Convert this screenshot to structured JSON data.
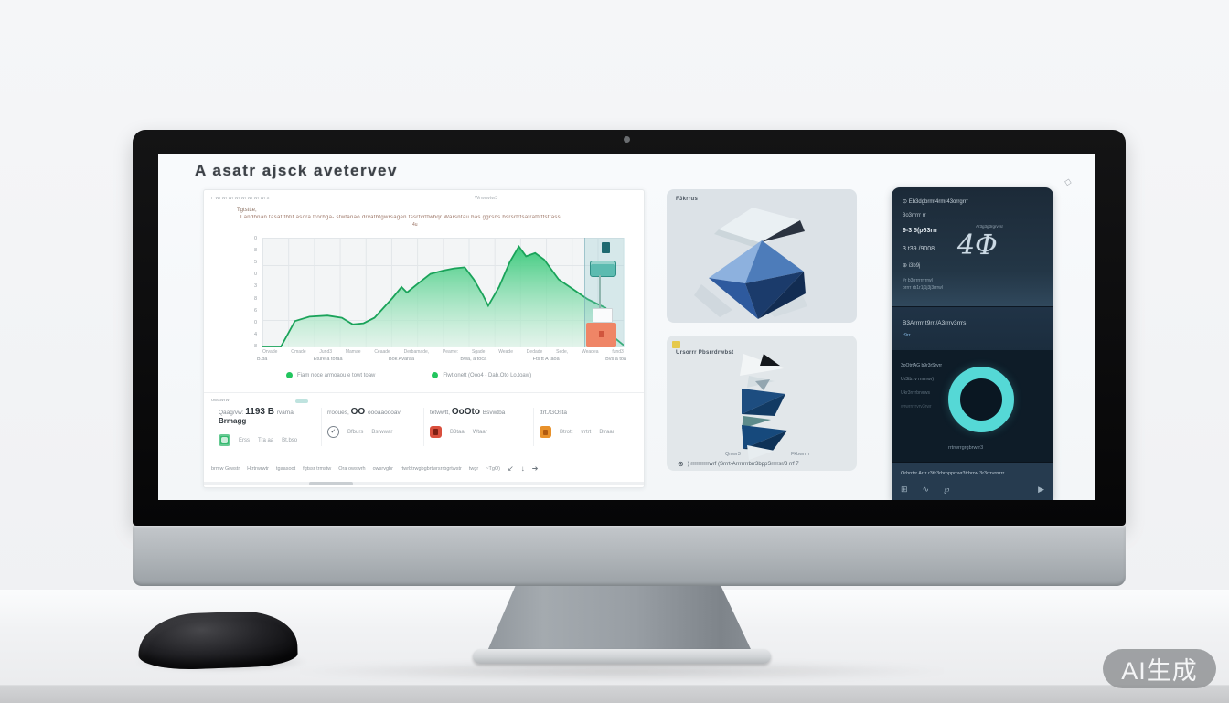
{
  "watermark": "AI生成",
  "screen": {
    "title": "A asatr ajsck avetervev",
    "corner_icon": "◇"
  },
  "chart_card": {
    "header_left": "r wrwrwrwrwrwrwrwrs",
    "header_right": "Wrwrwtw3",
    "annotation_lead": "Tgtsttte,",
    "annotation": "Landbnan tasat tbtif asora trorbga- stwtanao drvatbtgwrsagen tssrtvrtfwbqr  Warsntau bas ggrsns  bsrsrtrtsatrattrtfstfass",
    "annotation_sub": "4u",
    "legend": [
      "Fiam noce armoaou e towt toaw",
      "Flwt onett (Ooo4 - Dab.Oto Lo.toaw)"
    ],
    "stats_label": "owswrw",
    "stats": [
      {
        "header_prefix": "Qaag/vw:",
        "header_big": "1193 B",
        "header_suffix": "rvama",
        "header_sub": "Brmagg",
        "icon": "green-square",
        "values": [
          "Erss",
          "Tra aa",
          "Bt.bso"
        ]
      },
      {
        "header_prefix": "rrooues,",
        "header_big": "OO",
        "header_suffix": "oooaaoooav",
        "header_sub": "",
        "icon": "check-circle",
        "values": [
          "Bfburs",
          "Bsrwwar"
        ]
      },
      {
        "header_prefix": "tetwwtt,",
        "header_big": "OoOto",
        "header_suffix": "Bsvwtba",
        "header_sub": "",
        "icon": "red-square",
        "values": [
          "B3taa",
          "Wtaar"
        ]
      },
      {
        "header_prefix": "ttrt./GOsta",
        "header_big": "",
        "header_suffix": "",
        "header_sub": "",
        "icon": "orange-square",
        "values": [
          "Btrott",
          "trrtrt",
          "Btraar"
        ]
      }
    ],
    "footer_items": [
      "brmw Grwstr",
      "Htrtrwrwtr",
      "tgaasoot",
      "fgtssr trmstw",
      "Ora owswrh",
      "owsrvgbr",
      "rtwrbtrwgbgbrtwrsrrbgrtwstr",
      "twgr",
      "~TgO)"
    ],
    "footer_icons": [
      "↙",
      "↓",
      "➔"
    ]
  },
  "chart_data": {
    "type": "area",
    "title": "",
    "xlabel": "",
    "ylabel": "",
    "ylim": [
      0,
      100
    ],
    "grid": true,
    "legend_position": "bottom",
    "y_ticks": [
      "0",
      "8",
      "5",
      "0",
      "3",
      "8",
      "6",
      "0",
      "4",
      "8"
    ],
    "x_ticks": [
      "Orvade",
      "Omade",
      "Jund3",
      "Mamae",
      "Ceaade",
      "Derbamade,",
      "Peame:",
      "Sgade",
      "Weade",
      "Dedade",
      "Sede,",
      "Weadea",
      "fund3"
    ],
    "x_subticks": [
      "B.ba",
      "Eture a toraa",
      "Bok Avaraa",
      "Bwa, a toca",
      "Fts tt A taoa",
      "Bvs a toa"
    ],
    "series": [
      {
        "name": "Fiam noce armoaou e towt toaw",
        "points": [
          {
            "x": 0.0,
            "y": 0
          },
          {
            "x": 0.05,
            "y": 0
          },
          {
            "x": 0.09,
            "y": 24
          },
          {
            "x": 0.13,
            "y": 28
          },
          {
            "x": 0.18,
            "y": 29
          },
          {
            "x": 0.22,
            "y": 27
          },
          {
            "x": 0.25,
            "y": 21
          },
          {
            "x": 0.28,
            "y": 22
          },
          {
            "x": 0.31,
            "y": 27
          },
          {
            "x": 0.36,
            "y": 45
          },
          {
            "x": 0.385,
            "y": 55
          },
          {
            "x": 0.4,
            "y": 50
          },
          {
            "x": 0.43,
            "y": 58
          },
          {
            "x": 0.465,
            "y": 67
          },
          {
            "x": 0.5,
            "y": 70
          },
          {
            "x": 0.53,
            "y": 72
          },
          {
            "x": 0.56,
            "y": 73
          },
          {
            "x": 0.585,
            "y": 62
          },
          {
            "x": 0.61,
            "y": 48
          },
          {
            "x": 0.625,
            "y": 38
          },
          {
            "x": 0.655,
            "y": 55
          },
          {
            "x": 0.685,
            "y": 78
          },
          {
            "x": 0.71,
            "y": 92
          },
          {
            "x": 0.73,
            "y": 83
          },
          {
            "x": 0.755,
            "y": 86
          },
          {
            "x": 0.78,
            "y": 80
          },
          {
            "x": 0.82,
            "y": 62
          },
          {
            "x": 0.86,
            "y": 53
          },
          {
            "x": 0.9,
            "y": 44
          },
          {
            "x": 0.95,
            "y": 36
          },
          {
            "x": 0.97,
            "y": 10
          },
          {
            "x": 1.0,
            "y": 2
          }
        ]
      }
    ],
    "colors": {
      "area_top": "#35c878",
      "area_bottom": "#d9f3e4",
      "stroke": "#1aa35a",
      "highlight_column": "#8cc4cd",
      "tooltip": "#5cbbb0",
      "alert_box": "#ef8566"
    }
  },
  "cards": {
    "card_a": {
      "label": "F3krrus"
    },
    "card_b": {
      "label": "Ursorrr Pbsrrdrwbst",
      "caption_left": "Qrrwr3",
      "caption_right": "Fkbwrrrr",
      "footer_icon": "⊛",
      "footer": ") rrrrrrrrrrwrf (Srrrt-Arrrrrrrbrr3bppSrrrrsr/3 rrf 7"
    }
  },
  "dark_panel": {
    "l1_icon": "⊙",
    "l1": "Eb3dgbrmt4rmr43orrgrrr",
    "l2": "3o3rrrrr rr",
    "l3": "9-3 5(p63rrr",
    "l3_right": "Ar3g3g3rgrvrsr",
    "monogram": "4Φ",
    "l4": "3 t39 /9008",
    "l5_icon": "⊕",
    "l5": "i3b9j",
    "l6": "#r b3rrrrrrrrrrwl",
    "l7": "brrrr rb1r1j1j3j3rrrwl",
    "s2_title": "B3Arrrrr t9rr /A3rrrv3rrrs",
    "s2_link": "r9rr",
    "s3_lines": [
      {
        "text": "3oOtrtAG b9r3rSrvrr",
        "color": "#9fb0bd"
      },
      {
        "text": "Ur3tb.rv rrrrrrwr)",
        "color": "#7b8c99"
      },
      {
        "text": "Ukr3rrrrbrvrws",
        "color": "#5d6f7c"
      },
      {
        "text": "wrwrrrrrvrv3rwr",
        "color": "#4a5b68"
      }
    ],
    "ring_caption": "rrtrwrrgrgbrwrr3",
    "s4_text": "Orbrrtrr Arrr r3tk3rbropprrwr3trbrrw 3r3rrrvrrrrrr",
    "s4_icons": [
      "⊞",
      "∿",
      "℘",
      "▶"
    ]
  }
}
